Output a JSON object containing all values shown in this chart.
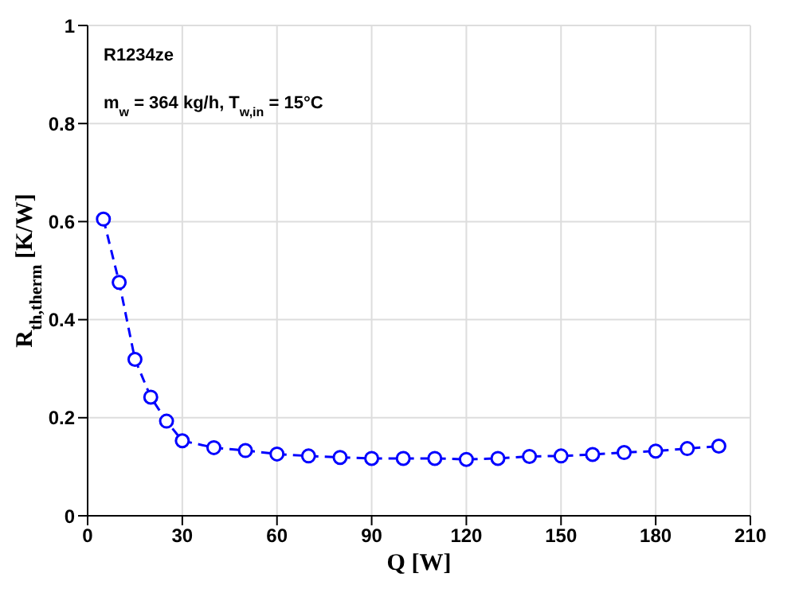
{
  "chart_data": {
    "type": "line",
    "xlabel": "Q [W]",
    "ylabel": "R$_{th,therm}$ [K/W]",
    "annotations": [
      "R1234ze",
      "m$_{w}$ = 364 kg/h, T$_{w,in}$ = 15°C"
    ],
    "x": [
      5,
      10,
      15,
      20,
      25,
      30,
      40,
      50,
      60,
      70,
      80,
      90,
      100,
      110,
      120,
      130,
      140,
      150,
      160,
      170,
      180,
      190,
      200
    ],
    "series": [
      {
        "color": "#0000ff",
        "values": [
          0.605,
          0.476,
          0.319,
          0.242,
          0.193,
          0.153,
          0.139,
          0.133,
          0.126,
          0.122,
          0.119,
          0.117,
          0.117,
          0.117,
          0.115,
          0.117,
          0.121,
          0.122,
          0.125,
          0.129,
          0.132,
          0.137,
          0.142
        ]
      }
    ],
    "xlim": [
      0,
      210
    ],
    "xticks": [
      0,
      30,
      60,
      90,
      120,
      150,
      180,
      210
    ],
    "ylim": [
      0,
      1
    ],
    "yticks": [
      0,
      0.2,
      0.4,
      0.6,
      0.8,
      1
    ],
    "grid": true,
    "marker": "circle",
    "line_style": "dashed"
  }
}
